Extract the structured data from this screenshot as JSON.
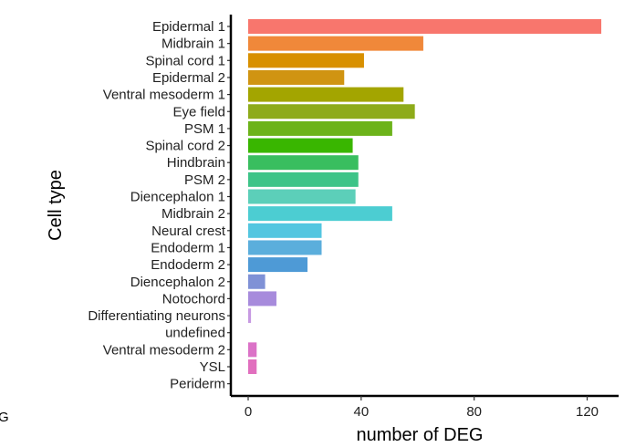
{
  "chart_data": {
    "type": "bar",
    "orientation": "horizontal",
    "title": "",
    "xlabel": "number of DEG",
    "ylabel": "Cell type",
    "xlim": [
      0,
      125
    ],
    "xticks": [
      0,
      40,
      80,
      120
    ],
    "grid": false,
    "legend": "none",
    "categories": [
      "Epidermal 1",
      "Midbrain 1",
      "Spinal cord 1",
      "Epidermal 2",
      "Ventral mesoderm 1",
      "Eye field",
      "PSM 1",
      "Spinal cord 2",
      "Hindbrain",
      "PSM 2",
      "Diencephalon 1",
      "Midbrain 2",
      "Neural crest",
      "Endoderm 1",
      "Endoderm 2",
      "Diencephalon 2",
      "Notochord",
      "Differentiating neurons",
      "undefined",
      "Ventral mesoderm 2",
      "YSL",
      "Periderm"
    ],
    "values": [
      125,
      62,
      41,
      34,
      55,
      59,
      51,
      37,
      39,
      39,
      38,
      51,
      26,
      26,
      21,
      6,
      10,
      1,
      0,
      3,
      3,
      0
    ],
    "colors": [
      "#F8766D",
      "#F0883A",
      "#D89000",
      "#D09412",
      "#A3A500",
      "#8EAB1A",
      "#6CB31A",
      "#39B600",
      "#39BE5F",
      "#3DC488",
      "#5CCFB9",
      "#4CCDD2",
      "#53C6E0",
      "#5BAEDC",
      "#4E9AD6",
      "#7F91D6",
      "#A78BDC",
      "#C79AE2",
      "#D38FD3",
      "#DB72C7",
      "#E16FBE",
      "#EC6CB2"
    ]
  },
  "edge_fragment": "G"
}
